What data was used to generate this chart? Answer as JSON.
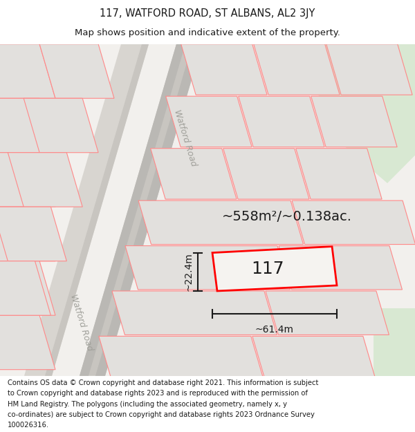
{
  "title_line1": "117, WATFORD ROAD, ST ALBANS, AL2 3JY",
  "title_line2": "Map shows position and indicative extent of the property.",
  "area_label": "~558m²/~0.138ac.",
  "property_number": "117",
  "width_label": "~61.4m",
  "height_label": "~22.4m",
  "footer_text": "Contains OS data © Crown copyright and database right 2021. This information is subject to Crown copyright and database rights 2023 and is reproduced with the permission of HM Land Registry. The polygons (including the associated geometry, namely x, y co-ordinates) are subject to Crown copyright and database rights 2023 Ordnance Survey 100026316.",
  "bg_color": "#f2f0ed",
  "plot_face": "#e2e0dd",
  "road_light": "#d8d5d0",
  "road_dark": "#c8c5c0",
  "road_center": "#bab8b4",
  "green_color": "#d8e8d2",
  "red_outline": "#ff0000",
  "red_plot": "#ff8888",
  "text_color": "#1a1a1a",
  "road_text_color": "#a0a09a",
  "title_fs": 10.5,
  "subtitle_fs": 9.5,
  "footer_fs": 7.2,
  "area_fs": 14,
  "num_fs": 18,
  "dim_fs": 10,
  "road_fs": 9
}
